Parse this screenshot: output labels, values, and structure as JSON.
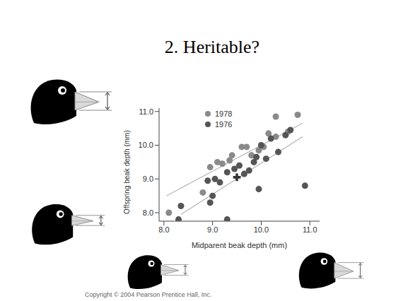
{
  "title": "2. Heritable?",
  "copyright": "Copyright © 2004 Pearson Prentice Hall, Inc.",
  "chart_data": {
    "type": "scatter",
    "x_label": "Midparent beak depth (mm)",
    "y_label": "Offspring beak depth (mm)",
    "xlim": [
      7.9,
      11.2
    ],
    "ylim": [
      7.75,
      11.1
    ],
    "xticks": [
      {
        "value": 8,
        "label": "8.0"
      },
      {
        "value": 9,
        "label": "9.0"
      },
      {
        "value": 10,
        "label": "10.0"
      },
      {
        "value": 11,
        "label": "11.0"
      }
    ],
    "yticks": [
      {
        "value": 8,
        "label": "8.0"
      },
      {
        "value": 9,
        "label": "9.0"
      },
      {
        "value": 10,
        "label": "10.0"
      },
      {
        "value": 11,
        "label": "11.0"
      }
    ],
    "grid": false,
    "legend": "upper left",
    "series": [
      {
        "name": "1978",
        "color": "#8a8a8a",
        "marker": "circle",
        "x": [
          8.1,
          8.8,
          8.95,
          9.1,
          9.2,
          9.35,
          9.4,
          9.6,
          9.7,
          9.8,
          9.95,
          10.05,
          10.15,
          10.3,
          10.3,
          10.55,
          10.75
        ],
        "y": [
          8.0,
          8.6,
          9.35,
          9.5,
          9.45,
          9.55,
          9.7,
          9.95,
          9.95,
          9.7,
          9.85,
          9.95,
          10.35,
          10.25,
          10.85,
          10.4,
          10.9
        ]
      },
      {
        "name": "1976",
        "color": "#555555",
        "marker": "circle",
        "x": [
          8.35,
          8.3,
          8.9,
          8.95,
          9.0,
          9.05,
          9.15,
          9.3,
          9.3,
          9.45,
          9.55,
          9.65,
          9.75,
          9.85,
          9.9,
          9.95,
          10.0,
          10.1,
          10.2,
          10.35,
          10.5,
          10.6,
          10.9
        ],
        "y": [
          8.2,
          7.8,
          8.95,
          8.3,
          8.5,
          9.0,
          8.9,
          9.2,
          7.8,
          9.3,
          9.4,
          9.15,
          9.25,
          9.5,
          9.65,
          8.7,
          10.0,
          9.6,
          10.2,
          9.8,
          10.3,
          10.45,
          8.8
        ]
      }
    ],
    "fit_lines": [
      {
        "color": "#b5b5b5",
        "x": [
          8.05,
          10.85
        ],
        "y": [
          8.5,
          10.65
        ]
      },
      {
        "color": "#b5b5b5",
        "x": [
          8.35,
          10.85
        ],
        "y": [
          7.95,
          10.25
        ]
      }
    ],
    "means": [
      {
        "x": 9.5,
        "y": 9.05,
        "color": "#333333",
        "marker": "cross"
      }
    ]
  }
}
